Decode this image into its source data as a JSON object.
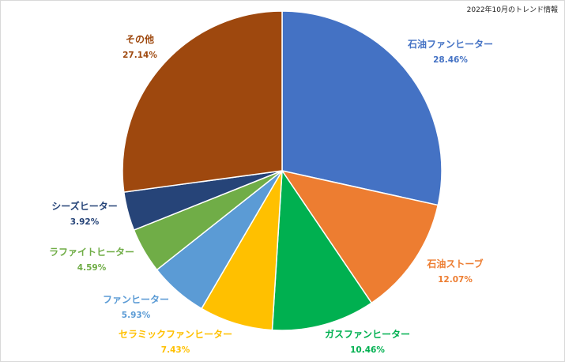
{
  "chart_data": {
    "type": "pie",
    "title": "2022年10月のトレンド情報",
    "unit": "%",
    "slices": [
      {
        "name": "石油ファンヒーター",
        "value": 28.46,
        "label": "28.46%",
        "color": "#4472C4"
      },
      {
        "name": "石油ストーブ",
        "value": 12.07,
        "label": "12.07%",
        "color": "#ED7D31"
      },
      {
        "name": "ガスファンヒーター",
        "value": 10.46,
        "label": "10.46%",
        "color": "#00B050"
      },
      {
        "name": "セラミックファンヒーター",
        "value": 7.43,
        "label": "7.43%",
        "color": "#FFC000"
      },
      {
        "name": "ファンヒーター",
        "value": 5.93,
        "label": "5.93%",
        "color": "#5B9BD5"
      },
      {
        "name": "ラファイトヒーター",
        "value": 4.59,
        "label": "4.59%",
        "color": "#70AD47"
      },
      {
        "name": "シーズヒーター",
        "value": 3.92,
        "label": "3.92%",
        "color": "#264478"
      },
      {
        "name": "その他",
        "value": 27.14,
        "label": "27.14%",
        "color": "#9E480E"
      }
    ],
    "legend": "none",
    "start_angle": "12 o'clock",
    "direction": "clockwise"
  }
}
